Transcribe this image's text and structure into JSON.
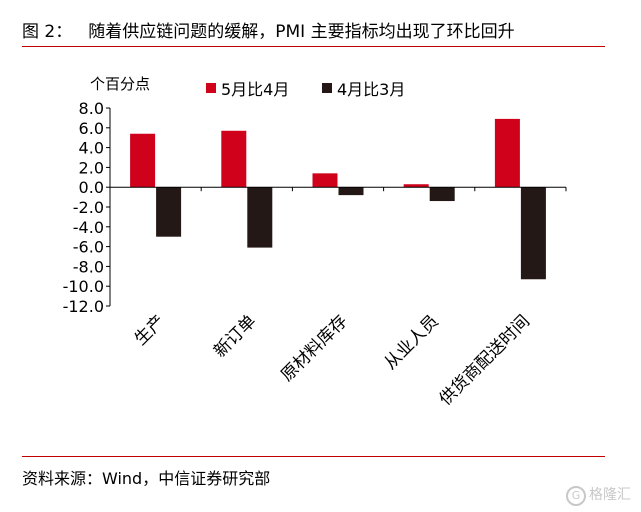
{
  "header": {
    "figure_number": "图 2：",
    "title": "随着供应链问题的缓解，PMI 主要指标均出现了环比回升"
  },
  "footer": {
    "source": "资料来源：Wind，中信证券研究部",
    "watermark": "格隆汇"
  },
  "chart_data": {
    "type": "bar",
    "ylabel": "个百分点",
    "categories": [
      "生产",
      "新订单",
      "原材料库存",
      "从业人员",
      "供货商配送时间"
    ],
    "series": [
      {
        "name": "5月比4月",
        "color": "#d0021b",
        "values": [
          5.4,
          5.7,
          1.4,
          0.3,
          6.9
        ]
      },
      {
        "name": "4月比3月",
        "color": "#231816",
        "values": [
          -5.0,
          -6.1,
          -0.8,
          -1.4,
          -9.3
        ]
      }
    ],
    "ylim": [
      -12.0,
      8.0
    ],
    "yticks": [
      "8.0",
      "6.0",
      "4.0",
      "2.0",
      "0.0",
      "-2.0",
      "-4.0",
      "-6.0",
      "-8.0",
      "-10.0",
      "-12.0"
    ],
    "grid": false,
    "legend_position": "top"
  }
}
